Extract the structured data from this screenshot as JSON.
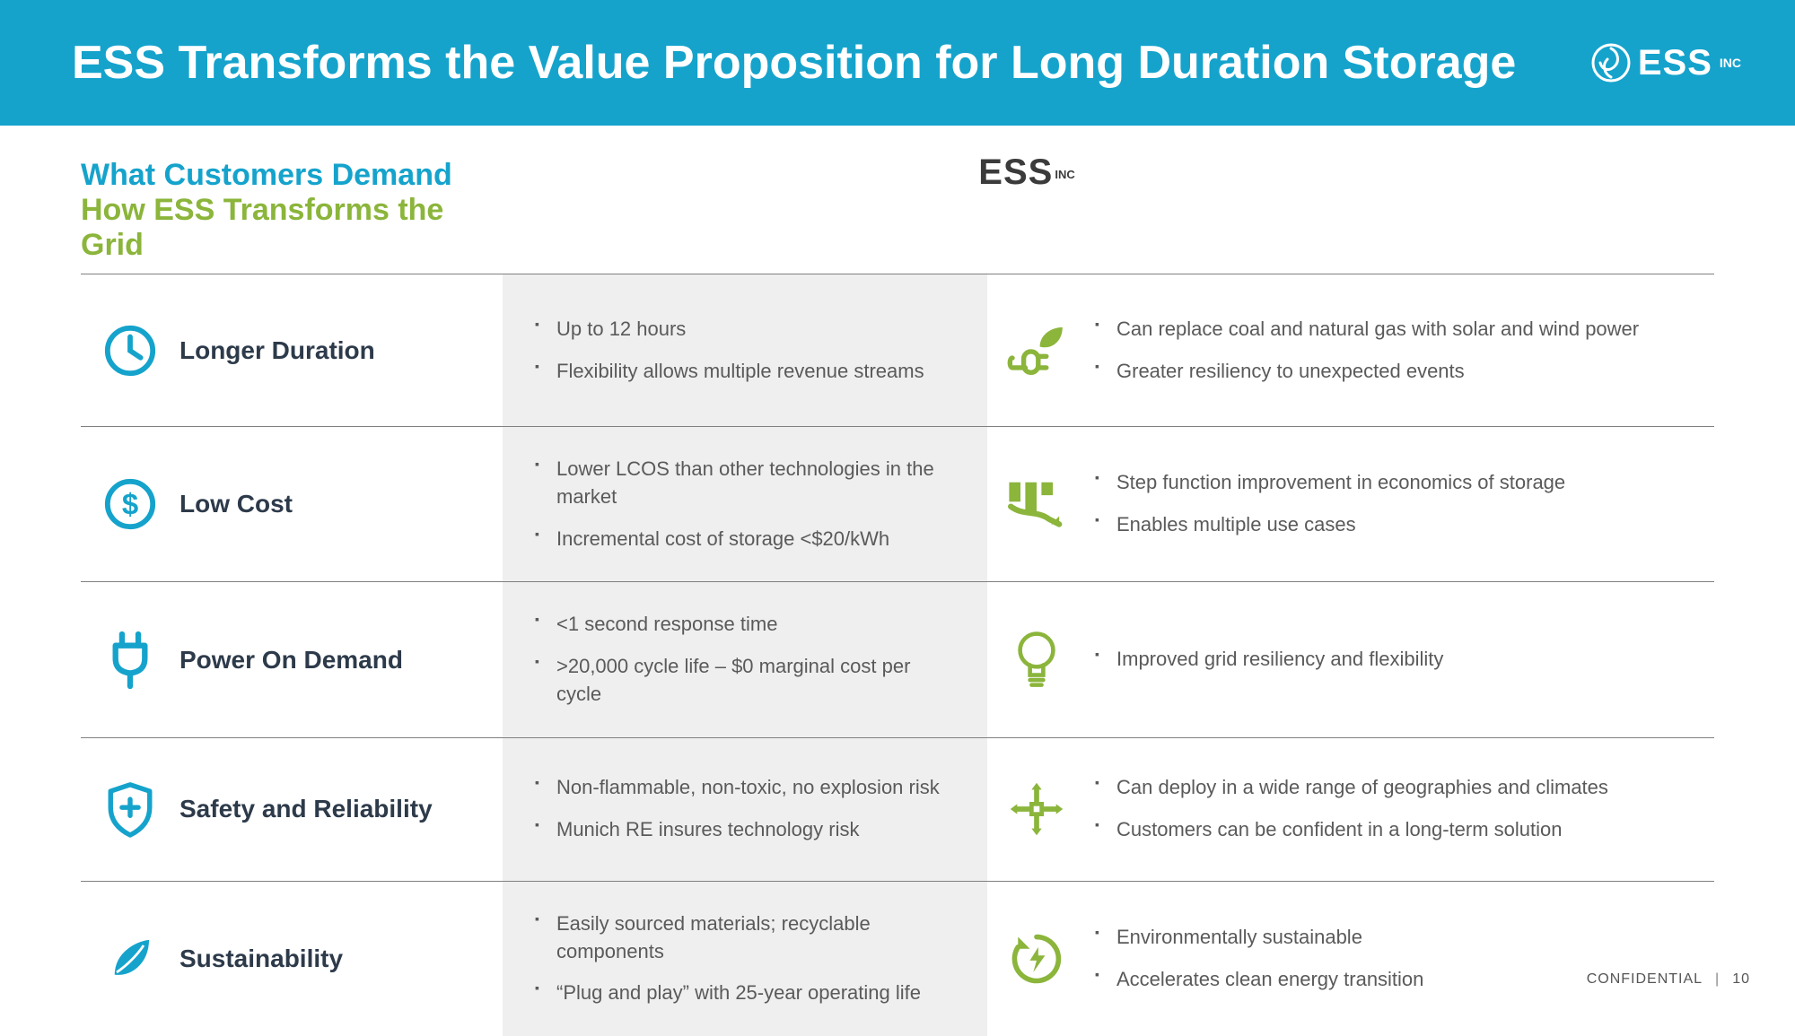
{
  "colors": {
    "header_bg": "#15a3cc",
    "blue": "#15a3cc",
    "green": "#8bb53b",
    "darktext": "#2d3a4a",
    "graytext": "#5a5a5a",
    "midcell_bg": "#efefef",
    "border": "#808080"
  },
  "header": {
    "title": "ESS Transforms the Value Proposition for Long Duration Storage",
    "logo_text": "ESS",
    "logo_sup": "INC"
  },
  "columns": {
    "left": "What Customers Demand",
    "center_logo_text": "ESS",
    "center_logo_sup": "INC",
    "right": "How ESS Transforms the Grid"
  },
  "rows": [
    {
      "icon_left": "clock",
      "label": "Longer Duration",
      "mid": [
        "Up to 12 hours",
        "Flexibility allows multiple revenue streams"
      ],
      "icon_right": "plug-leaf",
      "right": [
        "Can replace coal and natural gas with solar and wind power",
        "Greater resiliency to unexpected events"
      ]
    },
    {
      "icon_left": "dollar",
      "label": "Low Cost",
      "mid": [
        "Lower LCOS than other technologies in the market",
        "Incremental cost of storage <$20/kWh"
      ],
      "icon_right": "chart-down",
      "right": [
        "Step function improvement in economics of storage",
        "Enables multiple use cases"
      ]
    },
    {
      "icon_left": "plug",
      "label": "Power On Demand",
      "mid": [
        "<1 second response time",
        ">20,000 cycle life – $0 marginal cost per cycle"
      ],
      "icon_right": "bulb",
      "right": [
        "Improved grid resiliency and flexibility"
      ]
    },
    {
      "icon_left": "shield",
      "label": "Safety and Reliability",
      "mid": [
        "Non-flammable, non-toxic, no explosion risk",
        "Munich RE insures technology risk"
      ],
      "icon_right": "arrows",
      "right": [
        "Can deploy in a wide range of geographies and climates",
        "Customers can be confident in a long-term solution"
      ]
    },
    {
      "icon_left": "leaf",
      "label": "Sustainability",
      "mid": [
        "Easily sourced materials; recyclable components",
        "“Plug and play” with 25-year operating life"
      ],
      "icon_right": "recycle-bolt",
      "right": [
        "Environmentally sustainable",
        "Accelerates clean energy transition"
      ]
    }
  ],
  "footer": {
    "label": "CONFIDENTIAL",
    "page": "10"
  }
}
